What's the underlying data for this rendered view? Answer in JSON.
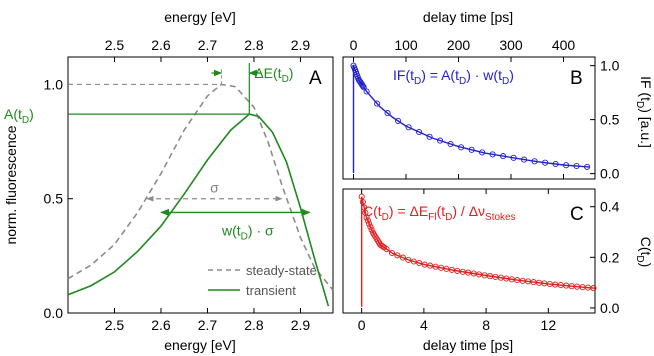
{
  "colors": {
    "steady": "#8c8c8c",
    "transient": "#1e8a1e",
    "blue": "#2222cc",
    "red": "#e02020"
  },
  "panel_letters": [
    "A",
    "B",
    "C"
  ],
  "chart_data": [
    {
      "id": "A",
      "type": "line",
      "xlabel_bottom": "energy [eV]",
      "xlabel_top": "energy [eV]",
      "ylabel": "norm. fluorescence",
      "xlim": [
        2.4,
        2.97
      ],
      "ylim": [
        0.0,
        1.12
      ],
      "x_ticks": [
        "2.5",
        "2.6",
        "2.7",
        "2.8",
        "2.9"
      ],
      "y_ticks": [
        "0.0",
        "0.5",
        "1.0"
      ],
      "series": [
        {
          "name": "steady-state",
          "style": "dashed",
          "points": [
            [
              2.4,
              0.15
            ],
            [
              2.45,
              0.21
            ],
            [
              2.5,
              0.3
            ],
            [
              2.55,
              0.44
            ],
            [
              2.6,
              0.61
            ],
            [
              2.65,
              0.8
            ],
            [
              2.7,
              0.95
            ],
            [
              2.73,
              1.0
            ],
            [
              2.76,
              0.99
            ],
            [
              2.8,
              0.9
            ],
            [
              2.83,
              0.75
            ],
            [
              2.86,
              0.56
            ],
            [
              2.9,
              0.33
            ],
            [
              2.93,
              0.2
            ],
            [
              2.97,
              0.1
            ]
          ]
        },
        {
          "name": "transient",
          "style": "solid",
          "points": [
            [
              2.4,
              0.08
            ],
            [
              2.45,
              0.12
            ],
            [
              2.5,
              0.18
            ],
            [
              2.55,
              0.27
            ],
            [
              2.6,
              0.38
            ],
            [
              2.65,
              0.52
            ],
            [
              2.7,
              0.67
            ],
            [
              2.75,
              0.8
            ],
            [
              2.79,
              0.87
            ],
            [
              2.81,
              0.86
            ],
            [
              2.84,
              0.79
            ],
            [
              2.87,
              0.66
            ],
            [
              2.9,
              0.46
            ],
            [
              2.93,
              0.24
            ],
            [
              2.96,
              0.03
            ]
          ]
        }
      ],
      "annotations": {
        "a_label": "A(t",
        "a_sub": "D",
        "a_close": ")",
        "a_level": 0.87,
        "one_level": 1.0,
        "delta_e": "ΔE(t",
        "delta_e_sub": "D",
        "delta_e_close": ")",
        "steady_peak_x": 2.73,
        "transient_peak_x": 2.79,
        "sigma": "σ",
        "sigma_range": [
          2.57,
          2.86
        ],
        "sigma_level": 0.5,
        "w_label": "w(t",
        "w_sub": "D",
        "w_close": ") · σ",
        "w_range": [
          2.6,
          2.92
        ],
        "w_level": 0.44
      }
    },
    {
      "id": "B",
      "type": "line",
      "xlabel_top": "delay time [ps]",
      "ylabel": "IF (t",
      "ylabel_sub": "D",
      "ylabel_close": ") [a.u.]",
      "xlim": [
        -20,
        460
      ],
      "ylim": [
        -0.05,
        1.08
      ],
      "x_ticks": [
        "0",
        "100",
        "200",
        "300",
        "400"
      ],
      "y_ticks": [
        "0.0",
        "0.5",
        "1.0"
      ],
      "formula": "IF(t",
      "formula_sub1": "D",
      "formula_mid": ") = A(t",
      "formula_sub2": "D",
      "formula_mid2": ") · w(t",
      "formula_sub3": "D",
      "formula_close": ")",
      "fit": [
        [
          0,
          1.0
        ],
        [
          10,
          0.87
        ],
        [
          25,
          0.76
        ],
        [
          50,
          0.62
        ],
        [
          75,
          0.52
        ],
        [
          100,
          0.44
        ],
        [
          150,
          0.33
        ],
        [
          200,
          0.25
        ],
        [
          250,
          0.19
        ],
        [
          300,
          0.15
        ],
        [
          350,
          0.11
        ],
        [
          400,
          0.08
        ],
        [
          450,
          0.06
        ]
      ]
    },
    {
      "id": "C",
      "type": "line",
      "xlabel_bottom": "delay time [ps]",
      "ylabel": "C(t",
      "ylabel_sub": "D",
      "ylabel_close": ")",
      "xlim": [
        -1.2,
        15
      ],
      "ylim": [
        -0.02,
        0.47
      ],
      "x_ticks": [
        "0",
        "4",
        "8",
        "12"
      ],
      "y_ticks": [
        "0.0",
        "0.2",
        "0.4"
      ],
      "formula": "C(t",
      "formula_sub1": "D",
      "formula_mid": ") = ΔE",
      "formula_sub2": "Fl",
      "formula_mid2": "(t",
      "formula_sub3": "D",
      "formula_close": ") / Δν",
      "formula_sub4": "Stokes",
      "fit": [
        [
          0,
          0.44
        ],
        [
          0.3,
          0.36
        ],
        [
          0.7,
          0.3
        ],
        [
          1.2,
          0.25
        ],
        [
          2,
          0.215
        ],
        [
          3,
          0.19
        ],
        [
          4,
          0.172
        ],
        [
          6,
          0.148
        ],
        [
          8,
          0.128
        ],
        [
          10,
          0.11
        ],
        [
          12,
          0.095
        ],
        [
          14,
          0.083
        ],
        [
          15,
          0.078
        ]
      ]
    }
  ]
}
